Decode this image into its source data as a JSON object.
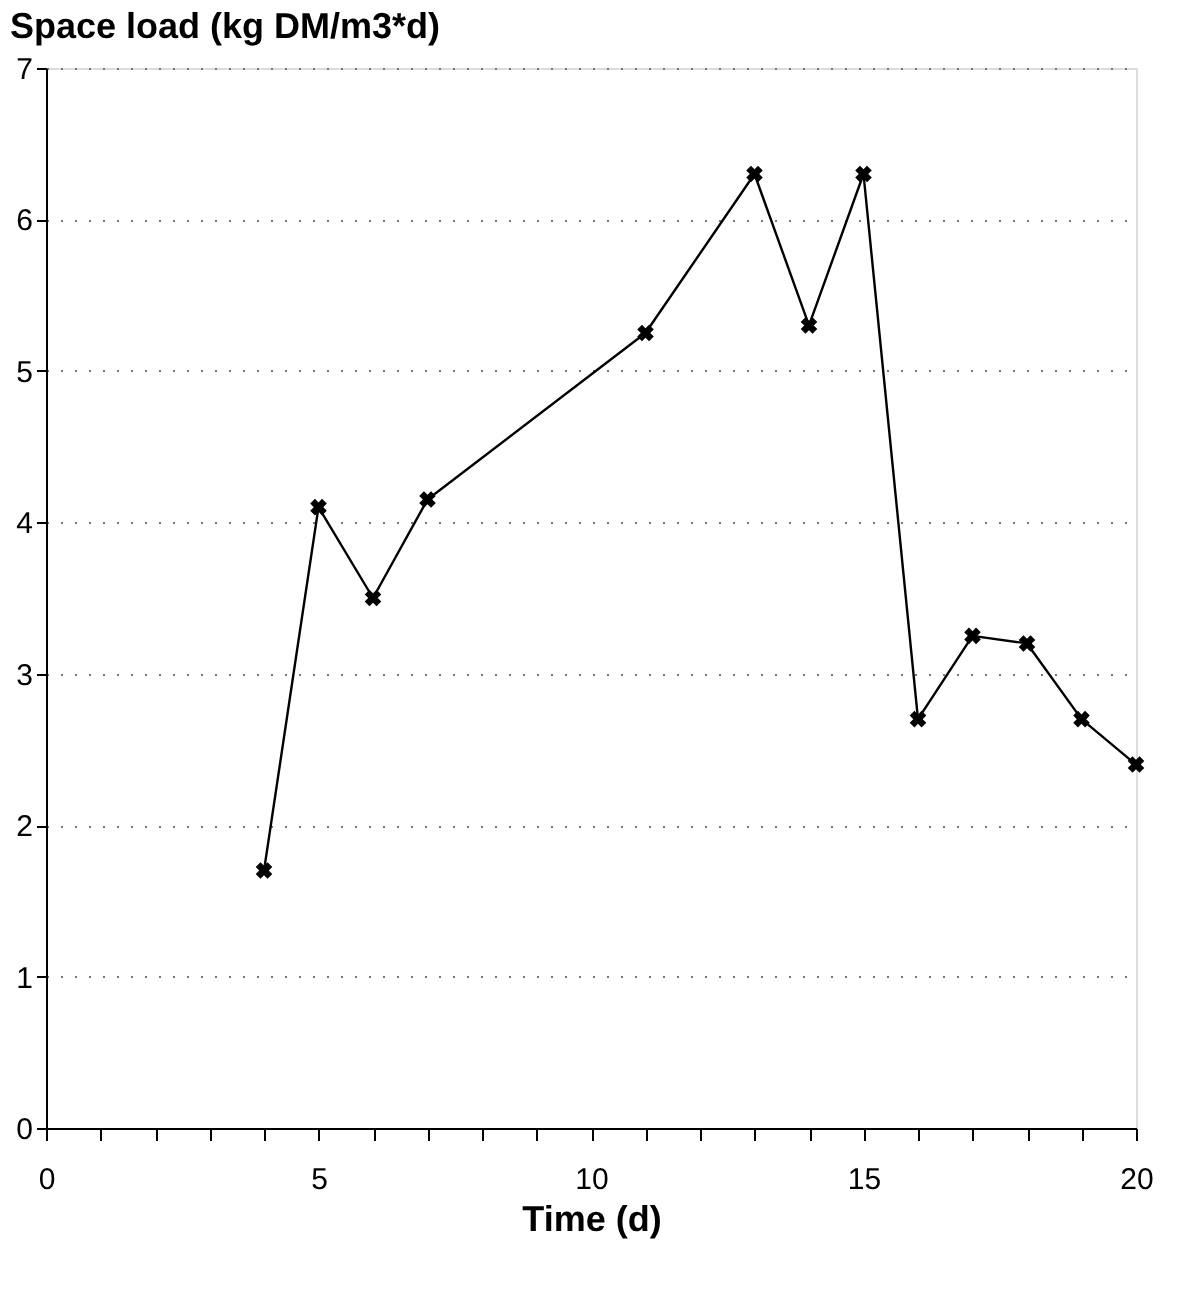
{
  "chart_data": {
    "type": "line",
    "ylabel": "Space load (kg DM/m3*d)",
    "xlabel": "Time (d)",
    "x": [
      4,
      5,
      6,
      7,
      11,
      13,
      14,
      15,
      16,
      17,
      18,
      19,
      20
    ],
    "values": [
      1.7,
      4.1,
      3.5,
      4.15,
      5.25,
      6.3,
      5.3,
      6.3,
      2.7,
      3.25,
      3.2,
      2.7,
      2.4
    ],
    "color": "#000000",
    "marker": "cross",
    "line_style": "solid",
    "xlim": [
      0,
      20
    ],
    "xticks": [
      0,
      {
        "value": 1,
        "label": null
      },
      {
        "value": 2,
        "label": null
      },
      {
        "value": 3,
        "label": null
      },
      {
        "value": 4,
        "label": null
      },
      5,
      {
        "value": 6,
        "label": null
      },
      {
        "value": 7,
        "label": null
      },
      {
        "value": 8,
        "label": null
      },
      {
        "value": 9,
        "label": null
      },
      10,
      {
        "value": 11,
        "label": null
      },
      {
        "value": 12,
        "label": null
      },
      {
        "value": 13,
        "label": null
      },
      {
        "value": 14,
        "label": null
      },
      15,
      {
        "value": 16,
        "label": null
      },
      {
        "value": 17,
        "label": null
      },
      {
        "value": 18,
        "label": null
      },
      {
        "value": 19,
        "label": null
      },
      20
    ],
    "ylim": [
      0,
      7
    ],
    "yticks": [
      0,
      1,
      2,
      3,
      4,
      5,
      6,
      7
    ],
    "grid": "y"
  }
}
